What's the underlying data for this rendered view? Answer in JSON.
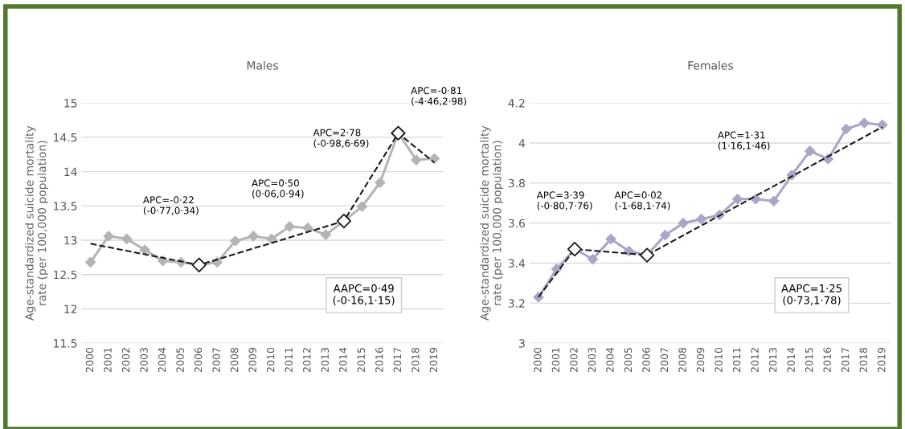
{
  "chart_data": [
    {
      "type": "line",
      "title": "Males",
      "ylabel": "Age-standardized suicide mortality\nrate (per 100,000 population)",
      "xlim": [
        1999.5,
        2019.5
      ],
      "xticks": [
        2000,
        2001,
        2002,
        2003,
        2004,
        2005,
        2006,
        2007,
        2008,
        2009,
        2010,
        2011,
        2012,
        2013,
        2014,
        2015,
        2016,
        2017,
        2018,
        2019
      ],
      "ylim": [
        11.5,
        15
      ],
      "yticks": [
        11.5,
        12,
        12.5,
        13,
        13.5,
        14,
        14.5,
        15
      ],
      "grid": "y",
      "legend": false,
      "series": [
        {
          "type": "line",
          "color": "#b4b4b4",
          "marker": "diamond",
          "line_style": "solid",
          "x": [
            2000,
            2001,
            2002,
            2003,
            2004,
            2005,
            2006,
            2007,
            2008,
            2009,
            2010,
            2011,
            2012,
            2013,
            2014,
            2015,
            2016,
            2017,
            2018,
            2019
          ],
          "values": [
            12.68,
            13.06,
            13.02,
            12.86,
            12.7,
            12.68,
            12.64,
            12.68,
            12.99,
            13.06,
            13.02,
            13.2,
            13.18,
            13.08,
            13.28,
            13.49,
            13.84,
            14.56,
            14.17,
            14.19
          ]
        },
        {
          "type": "line",
          "color": "#1a1a1a",
          "marker": "none",
          "line_style": "dashed",
          "x": [
            2000,
            2006,
            2014,
            2017,
            2019
          ],
          "values": [
            12.95,
            12.64,
            13.28,
            14.56,
            14.13
          ]
        },
        {
          "type": "scatter",
          "color": "#1a1a1a",
          "marker": "diamond",
          "x": [
            2006,
            2014,
            2017
          ],
          "values": [
            12.64,
            13.28,
            14.56
          ]
        }
      ],
      "annotations": [
        "APC=-0·22\n(-0·77,0·34)",
        "APC=0·50\n(0·06,0·94)",
        "APC=2·78\n(-0·98,6·69)",
        "APC=-0·81\n(-4·46,2·98)",
        "AAPC=0·49\n(-0·16,1·15)"
      ]
    },
    {
      "type": "line",
      "title": "Females",
      "ylabel": "Age-standardized suicide mortality\nrate (per 100,000 population)",
      "xlim": [
        1999.5,
        2019.5
      ],
      "xticks": [
        2000,
        2001,
        2002,
        2003,
        2004,
        2005,
        2006,
        2007,
        2008,
        2009,
        2010,
        2011,
        2012,
        2013,
        2014,
        2015,
        2016,
        2017,
        2018,
        2019
      ],
      "ylim": [
        3,
        4.2
      ],
      "yticks": [
        3,
        3.2,
        3.4,
        3.6,
        3.8,
        4,
        4.2
      ],
      "grid": "y",
      "legend": false,
      "series": [
        {
          "type": "line",
          "color": "#a9a6c8",
          "marker": "diamond",
          "line_style": "solid",
          "x": [
            2000,
            2001,
            2002,
            2003,
            2004,
            2005,
            2006,
            2007,
            2008,
            2009,
            2010,
            2011,
            2012,
            2013,
            2014,
            2015,
            2016,
            2017,
            2018,
            2019
          ],
          "values": [
            3.23,
            3.37,
            3.47,
            3.42,
            3.52,
            3.46,
            3.44,
            3.54,
            3.6,
            3.62,
            3.64,
            3.72,
            3.72,
            3.71,
            3.84,
            3.96,
            3.92,
            4.07,
            4.1,
            4.09
          ]
        },
        {
          "type": "line",
          "color": "#1a1a1a",
          "marker": "none",
          "line_style": "dashed",
          "x": [
            2000,
            2002,
            2006,
            2019
          ],
          "values": [
            3.23,
            3.47,
            3.44,
            4.08
          ]
        },
        {
          "type": "scatter",
          "color": "#1a1a1a",
          "marker": "diamond",
          "x": [
            2002,
            2006
          ],
          "values": [
            3.47,
            3.44
          ]
        }
      ],
      "annotations": [
        "APC=3·39\n(-0·80,7·76)",
        "APC=0·02\n(-1·68,1·74)",
        "APC=1·31\n(1·16,1·46)",
        "AAPC=1·25\n(0·73,1·78)"
      ]
    }
  ]
}
